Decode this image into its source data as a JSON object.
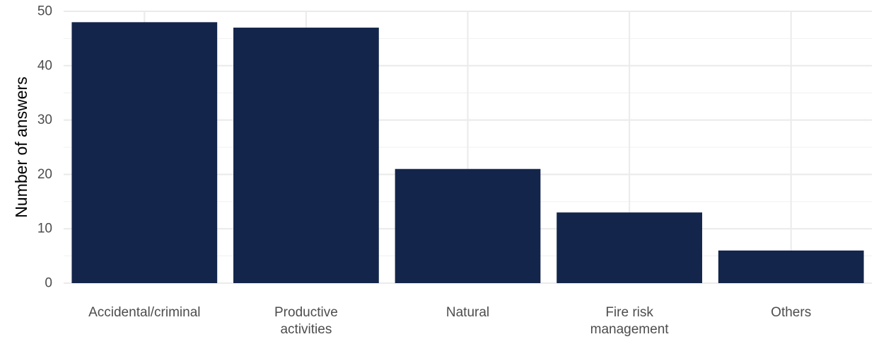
{
  "chart_data": {
    "type": "bar",
    "title": "",
    "xlabel": "",
    "ylabel": "Number of answers",
    "categories": [
      [
        "Accidental/criminal"
      ],
      [
        "Productive",
        "activities"
      ],
      [
        "Natural"
      ],
      [
        "Fire risk",
        "management"
      ],
      [
        "Others"
      ]
    ],
    "values": [
      48,
      47,
      21,
      13,
      6
    ],
    "ylim": [
      0,
      50
    ],
    "yticks": [
      0,
      10,
      20,
      30,
      40,
      50
    ],
    "grid": true,
    "legend": "none",
    "colors": {
      "bar": "#13254A",
      "background": "#FFFFFF",
      "grid_major": "#EBEBEB",
      "grid_minor": "#F2F2F2",
      "tick_text": "#4D4D4D",
      "axis_title": "#000000"
    }
  }
}
